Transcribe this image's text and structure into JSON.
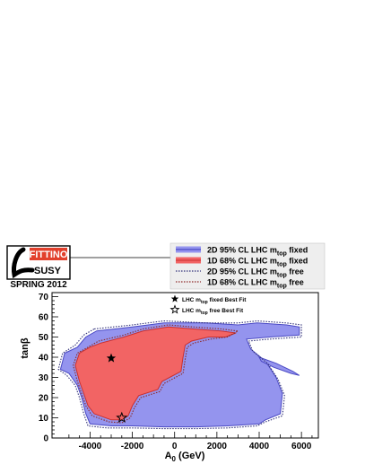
{
  "logo": {
    "brand_top": "FITTINO",
    "brand_bottom": "SUSY",
    "caption": "SPRING 2012",
    "colors": {
      "top_band": "#e2402c",
      "box_border": "#000000"
    }
  },
  "legend": {
    "entries": [
      {
        "pre": "2D 95% CL LHC m",
        "sub": "top",
        "post": " fixed",
        "style": "solid",
        "line_color": "#4a49c4",
        "fill_color": "#9494ee"
      },
      {
        "pre": "1D 68% CL LHC m",
        "sub": "top",
        "post": " fixed",
        "style": "solid",
        "line_color": "#d23a3a",
        "fill_color": "#f26464"
      },
      {
        "pre": "2D 95% CL LHC m",
        "sub": "top",
        "post": " free",
        "style": "dotted",
        "line_color": "#33337a"
      },
      {
        "pre": "1D 68% CL LHC m",
        "sub": "top",
        "post": " free",
        "style": "dotted",
        "line_color": "#8e2a2a"
      }
    ],
    "markers": [
      {
        "symbol": "filled-star",
        "pre": "LHC m",
        "sub": "top",
        "post": " fixed Best Fit"
      },
      {
        "symbol": "open-star",
        "pre": "LHC m",
        "sub": "top",
        "post": " free Best Fit"
      }
    ]
  },
  "chart_data": {
    "type": "contour",
    "xlabel": {
      "main": "A",
      "sub": "0",
      "unit": " (GeV)"
    },
    "ylabel": "tanβ",
    "xlim": [
      -5800,
      6800
    ],
    "ylim": [
      0,
      72
    ],
    "xticks": [
      -4000,
      -2000,
      0,
      2000,
      4000,
      6000
    ],
    "yticks": [
      0,
      10,
      20,
      30,
      40,
      50,
      60,
      70
    ],
    "colors": {
      "blue_fill": "#9494ee",
      "blue_line": "#4a49c4",
      "red_fill": "#f26464",
      "red_line": "#c93030",
      "dotted_blue": "#33337a",
      "dotted_red": "#8e2a2a"
    },
    "regions": {
      "blue_95_fixed": [
        [
          -3700,
          53
        ],
        [
          -2000,
          55
        ],
        [
          -500,
          57
        ],
        [
          1500,
          57
        ],
        [
          3000,
          56
        ],
        [
          3900,
          57
        ],
        [
          5300,
          56
        ],
        [
          5900,
          55
        ],
        [
          5900,
          51
        ],
        [
          4500,
          50
        ],
        [
          3400,
          49
        ],
        [
          3600,
          44
        ],
        [
          4300,
          38
        ],
        [
          4800,
          30
        ],
        [
          5100,
          22
        ],
        [
          5000,
          12
        ],
        [
          4300,
          9
        ],
        [
          4000,
          7
        ],
        [
          2500,
          6
        ],
        [
          1000,
          5.5
        ],
        [
          -500,
          5.5
        ],
        [
          -2000,
          6
        ],
        [
          -3000,
          6
        ],
        [
          -4000,
          7
        ],
        [
          -4200,
          12
        ],
        [
          -4400,
          20
        ],
        [
          -4600,
          26
        ],
        [
          -5000,
          32
        ],
        [
          -5400,
          34
        ],
        [
          -5300,
          38
        ],
        [
          -5200,
          42
        ],
        [
          -4600,
          45
        ],
        [
          -4200,
          50
        ]
      ],
      "blue_95_fixed_island": [
        [
          4000,
          40
        ],
        [
          4800,
          37
        ],
        [
          5600,
          33
        ],
        [
          5900,
          31
        ],
        [
          5500,
          32
        ],
        [
          4700,
          35
        ],
        [
          4100,
          38
        ]
      ],
      "red_68_fixed": [
        [
          -3500,
          47
        ],
        [
          -2400,
          50
        ],
        [
          -1500,
          53
        ],
        [
          -300,
          55
        ],
        [
          900,
          54
        ],
        [
          2200,
          53
        ],
        [
          2900,
          52
        ],
        [
          2400,
          50
        ],
        [
          1600,
          50
        ],
        [
          800,
          48
        ],
        [
          500,
          46
        ],
        [
          400,
          40
        ],
        [
          300,
          33
        ],
        [
          -600,
          28
        ],
        [
          -800,
          24
        ],
        [
          -1700,
          21
        ],
        [
          -2000,
          16
        ],
        [
          -2200,
          11
        ],
        [
          -2500,
          9
        ],
        [
          -3000,
          9
        ],
        [
          -3800,
          12
        ],
        [
          -4100,
          16
        ],
        [
          -4300,
          22
        ],
        [
          -4500,
          28
        ],
        [
          -4700,
          36
        ],
        [
          -4500,
          42
        ],
        [
          -4000,
          45
        ]
      ],
      "blue_95_free_outline": [
        [
          -3800,
          54
        ],
        [
          -2000,
          56
        ],
        [
          -500,
          58
        ],
        [
          1500,
          57
        ],
        [
          3000,
          57
        ],
        [
          3900,
          58
        ],
        [
          5300,
          57
        ],
        [
          6000,
          56
        ],
        [
          6000,
          50
        ],
        [
          4500,
          49
        ],
        [
          3500,
          48
        ],
        [
          3700,
          43
        ],
        [
          4400,
          37
        ],
        [
          4900,
          29
        ],
        [
          5200,
          21
        ],
        [
          5100,
          11
        ],
        [
          4300,
          8
        ],
        [
          3900,
          6
        ],
        [
          2500,
          5
        ],
        [
          1000,
          4.6
        ],
        [
          -500,
          4.6
        ],
        [
          -2000,
          5
        ],
        [
          -3200,
          5
        ],
        [
          -4100,
          6
        ],
        [
          -4300,
          12
        ],
        [
          -4500,
          20
        ],
        [
          -4700,
          26
        ],
        [
          -5100,
          31
        ],
        [
          -5500,
          34
        ],
        [
          -5400,
          38
        ],
        [
          -5300,
          42
        ],
        [
          -4700,
          46
        ],
        [
          -4300,
          51
        ]
      ],
      "red_68_free_outline": [
        [
          -3600,
          48
        ],
        [
          -2400,
          51
        ],
        [
          -1500,
          54
        ],
        [
          -300,
          56
        ],
        [
          900,
          55
        ],
        [
          2200,
          54
        ],
        [
          3000,
          53
        ],
        [
          2500,
          50
        ],
        [
          1700,
          49
        ],
        [
          900,
          47
        ],
        [
          600,
          45
        ],
        [
          500,
          39
        ],
        [
          400,
          32
        ],
        [
          -500,
          27
        ],
        [
          -700,
          23
        ],
        [
          -1600,
          20
        ],
        [
          -1900,
          15
        ],
        [
          -2100,
          10
        ],
        [
          -2500,
          7.5
        ],
        [
          -3100,
          8
        ],
        [
          -3900,
          11
        ],
        [
          -4200,
          16
        ],
        [
          -4400,
          22
        ],
        [
          -4600,
          28
        ],
        [
          -4800,
          36
        ],
        [
          -4600,
          42
        ],
        [
          -4100,
          45
        ]
      ]
    },
    "best_fit": {
      "fixed": {
        "x": -3000,
        "y": 39.5
      },
      "free": {
        "x": -2500,
        "y": 10
      }
    }
  }
}
